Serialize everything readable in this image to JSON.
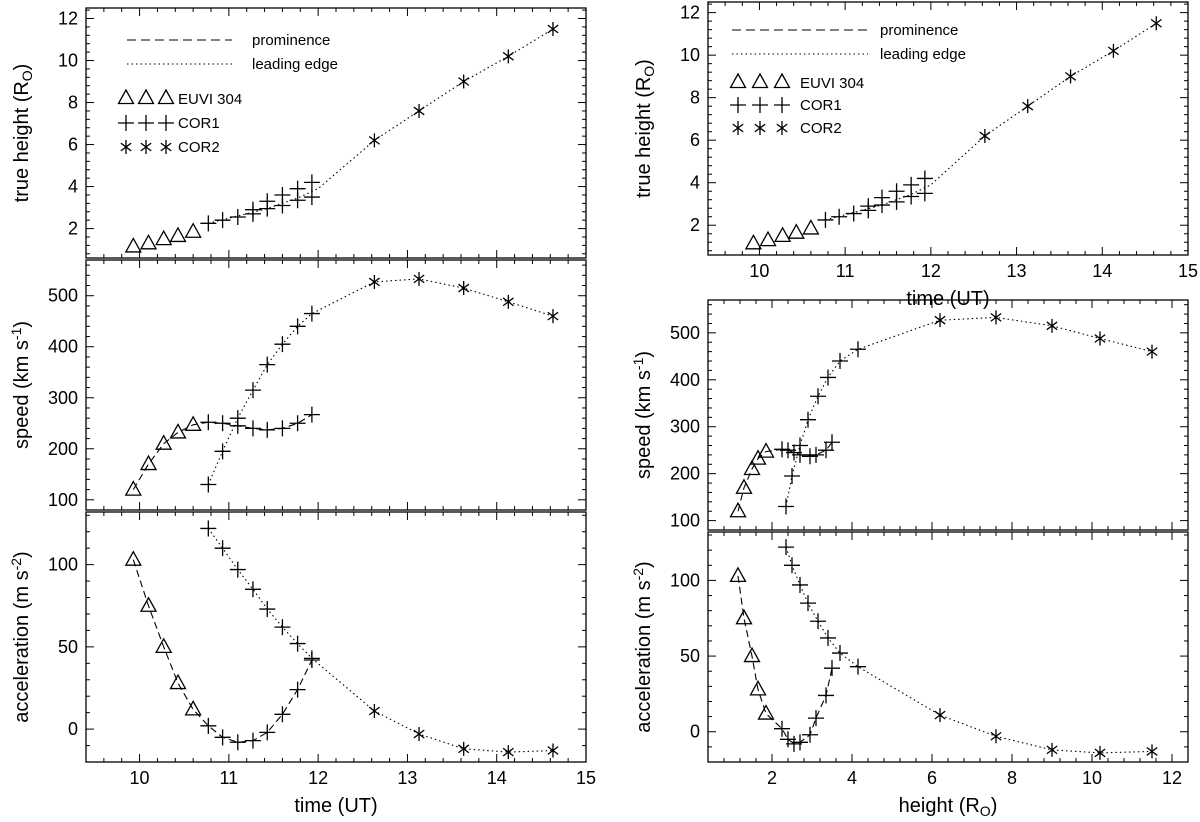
{
  "legend": {
    "prominence": "prominence",
    "leading_edge": "leading edge",
    "euvi": "EUVI 304",
    "cor1": "COR1",
    "cor2": "COR2"
  },
  "chart_data": [
    {
      "id": "height_vs_time",
      "type": "line",
      "xlabel": "",
      "ylabel": "true height (RO)",
      "xlim": [
        9.4,
        15
      ],
      "ylim": [
        0.6,
        12.5
      ],
      "xticks": [
        10,
        11,
        12,
        13,
        14,
        15
      ],
      "yticks": [
        2,
        4,
        6,
        8,
        10,
        12
      ],
      "show_xticklabels": false,
      "series": [
        {
          "name": "EUVI 304",
          "instrument": "euvi",
          "line": "none",
          "x": [
            9.93,
            10.1,
            10.27,
            10.43,
            10.6
          ],
          "y": [
            1.15,
            1.3,
            1.5,
            1.65,
            1.85
          ]
        },
        {
          "name": "COR1 prominence",
          "instrument": "cor1",
          "line": "none",
          "x": [
            10.77,
            10.93,
            11.1,
            11.27,
            11.43,
            11.6,
            11.77,
            11.93
          ],
          "y": [
            2.25,
            2.4,
            2.55,
            2.7,
            2.95,
            3.1,
            3.35,
            3.5
          ]
        },
        {
          "name": "COR1 leading edge",
          "instrument": "cor1",
          "line": "none",
          "x": [
            11.27,
            11.43,
            11.6,
            11.77,
            11.93
          ],
          "y": [
            2.9,
            3.3,
            3.6,
            3.9,
            4.2
          ]
        },
        {
          "name": "leading edge fit",
          "instrument": "none",
          "line": "dotted",
          "x": [
            10.77,
            11.1,
            11.43,
            11.77,
            12.0,
            12.63,
            13.13,
            13.63,
            14.13,
            14.63
          ],
          "y": [
            2.25,
            2.6,
            2.95,
            3.45,
            3.9,
            6.2,
            7.6,
            9.0,
            10.2,
            11.5
          ]
        },
        {
          "name": "COR2",
          "instrument": "cor2",
          "line": "none",
          "x": [
            12.63,
            13.13,
            13.63,
            14.13,
            14.63
          ],
          "y": [
            6.2,
            7.6,
            9.0,
            10.2,
            11.5
          ]
        }
      ]
    },
    {
      "id": "speed_vs_time",
      "type": "line",
      "xlabel": "",
      "ylabel": "speed (km s-1)",
      "xlim": [
        9.4,
        15
      ],
      "ylim": [
        80,
        570
      ],
      "xticks": [
        10,
        11,
        12,
        13,
        14,
        15
      ],
      "yticks": [
        100,
        200,
        300,
        400,
        500
      ],
      "show_xticklabels": false,
      "series": [
        {
          "name": "prominence fit",
          "instrument": "none",
          "line": "dashed",
          "x": [
            9.93,
            10.1,
            10.27,
            10.43,
            10.6,
            10.77,
            10.93,
            11.1,
            11.27,
            11.43,
            11.6,
            11.77,
            11.93
          ],
          "y": [
            120,
            170,
            210,
            232,
            247,
            252,
            250,
            245,
            240,
            237,
            240,
            250,
            267
          ]
        },
        {
          "name": "EUVI 304",
          "instrument": "euvi",
          "line": "none",
          "x": [
            9.93,
            10.1,
            10.27,
            10.43,
            10.6
          ],
          "y": [
            120,
            170,
            210,
            232,
            247
          ]
        },
        {
          "name": "COR1 prominence",
          "instrument": "cor1",
          "line": "none",
          "x": [
            10.77,
            10.93,
            11.1,
            11.27,
            11.43,
            11.6,
            11.77,
            11.93
          ],
          "y": [
            252,
            250,
            245,
            240,
            237,
            240,
            250,
            267
          ]
        },
        {
          "name": "leading edge fit",
          "instrument": "none",
          "line": "dotted",
          "x": [
            10.77,
            10.93,
            11.1,
            11.27,
            11.43,
            11.6,
            11.77,
            11.93,
            12.63,
            13.13,
            13.63,
            14.13,
            14.63
          ],
          "y": [
            130,
            195,
            260,
            315,
            365,
            405,
            440,
            465,
            527,
            533,
            515,
            488,
            460
          ]
        },
        {
          "name": "COR1 leading edge",
          "instrument": "cor1",
          "line": "none",
          "x": [
            10.77,
            10.93,
            11.1,
            11.27,
            11.43,
            11.6,
            11.77,
            11.93
          ],
          "y": [
            130,
            195,
            260,
            315,
            365,
            405,
            440,
            465
          ]
        },
        {
          "name": "COR2",
          "instrument": "cor2",
          "line": "none",
          "x": [
            12.63,
            13.13,
            13.63,
            14.13,
            14.63
          ],
          "y": [
            527,
            533,
            515,
            488,
            460
          ]
        }
      ]
    },
    {
      "id": "accel_vs_time",
      "type": "line",
      "xlabel": "time (UT)",
      "ylabel": "acceleration (m s-2)",
      "xlim": [
        9.4,
        15
      ],
      "ylim": [
        -20,
        132
      ],
      "xticks": [
        10,
        11,
        12,
        13,
        14,
        15
      ],
      "yticks": [
        0,
        50,
        100
      ],
      "show_xticklabels": true,
      "series": [
        {
          "name": "prominence fit",
          "instrument": "none",
          "line": "dashed",
          "x": [
            9.93,
            10.1,
            10.27,
            10.43,
            10.6,
            10.77,
            10.93,
            11.1,
            11.27,
            11.43,
            11.6,
            11.77,
            11.93
          ],
          "y": [
            103,
            75,
            50,
            28,
            12,
            2,
            -5,
            -8,
            -7,
            -2,
            9,
            24,
            42
          ]
        },
        {
          "name": "EUVI 304",
          "instrument": "euvi",
          "line": "none",
          "x": [
            9.93,
            10.1,
            10.27,
            10.43,
            10.6
          ],
          "y": [
            103,
            75,
            50,
            28,
            12
          ]
        },
        {
          "name": "COR1 prominence",
          "instrument": "cor1",
          "line": "none",
          "x": [
            10.77,
            10.93,
            11.1,
            11.27,
            11.43,
            11.6,
            11.77,
            11.93
          ],
          "y": [
            2,
            -5,
            -8,
            -7,
            -2,
            9,
            24,
            42
          ]
        },
        {
          "name": "leading edge fit",
          "instrument": "none",
          "line": "dotted",
          "x": [
            10.77,
            10.93,
            11.1,
            11.27,
            11.43,
            11.6,
            11.77,
            11.93,
            12.63,
            13.13,
            13.63,
            14.13,
            14.63
          ],
          "y": [
            122,
            110,
            97,
            85,
            73,
            62,
            52,
            43,
            11,
            -3,
            -12,
            -14,
            -13
          ]
        },
        {
          "name": "COR1 leading edge",
          "instrument": "cor1",
          "line": "none",
          "x": [
            10.77,
            10.93,
            11.1,
            11.27,
            11.43,
            11.6,
            11.77,
            11.93
          ],
          "y": [
            122,
            110,
            97,
            85,
            73,
            62,
            52,
            43
          ]
        },
        {
          "name": "COR2",
          "instrument": "cor2",
          "line": "none",
          "x": [
            12.63,
            13.13,
            13.63,
            14.13,
            14.63
          ],
          "y": [
            11,
            -3,
            -12,
            -14,
            -13
          ]
        }
      ]
    },
    {
      "id": "height_vs_time_right",
      "type": "line",
      "xlabel": "time (UT)",
      "ylabel": "true height (RO)",
      "xlim": [
        9.4,
        15
      ],
      "ylim": [
        0.6,
        12.5
      ],
      "xticks": [
        10,
        11,
        12,
        13,
        14,
        15
      ],
      "yticks": [
        2,
        4,
        6,
        8,
        10,
        12
      ],
      "show_xticklabels": true,
      "series": [
        {
          "name": "EUVI 304",
          "instrument": "euvi",
          "line": "none",
          "x": [
            9.93,
            10.1,
            10.27,
            10.43,
            10.6
          ],
          "y": [
            1.15,
            1.3,
            1.5,
            1.65,
            1.85
          ]
        },
        {
          "name": "COR1 prominence",
          "instrument": "cor1",
          "line": "none",
          "x": [
            10.77,
            10.93,
            11.1,
            11.27,
            11.43,
            11.6,
            11.77,
            11.93
          ],
          "y": [
            2.25,
            2.4,
            2.55,
            2.7,
            2.95,
            3.1,
            3.35,
            3.5
          ]
        },
        {
          "name": "COR1 leading edge",
          "instrument": "cor1",
          "line": "none",
          "x": [
            11.27,
            11.43,
            11.6,
            11.77,
            11.93
          ],
          "y": [
            2.9,
            3.3,
            3.6,
            3.9,
            4.2
          ]
        },
        {
          "name": "leading edge fit",
          "instrument": "none",
          "line": "dotted",
          "x": [
            10.77,
            11.1,
            11.43,
            11.77,
            12.0,
            12.63,
            13.13,
            13.63,
            14.13,
            14.63
          ],
          "y": [
            2.25,
            2.6,
            2.95,
            3.45,
            3.9,
            6.2,
            7.6,
            9.0,
            10.2,
            11.5
          ]
        },
        {
          "name": "COR2",
          "instrument": "cor2",
          "line": "none",
          "x": [
            12.63,
            13.13,
            13.63,
            14.13,
            14.63
          ],
          "y": [
            6.2,
            7.6,
            9.0,
            10.2,
            11.5
          ]
        }
      ]
    },
    {
      "id": "speed_vs_height",
      "type": "line",
      "xlabel": "",
      "ylabel": "speed (km s-1)",
      "xlim": [
        0.4,
        12.4
      ],
      "ylim": [
        80,
        570
      ],
      "xticks": [
        2,
        4,
        6,
        8,
        10,
        12
      ],
      "yticks": [
        100,
        200,
        300,
        400,
        500
      ],
      "show_xticklabels": false,
      "series": [
        {
          "name": "prominence fit",
          "instrument": "none",
          "line": "dashed",
          "x": [
            1.15,
            1.3,
            1.5,
            1.65,
            1.85,
            2.25,
            2.4,
            2.55,
            2.7,
            2.95,
            3.1,
            3.35,
            3.5
          ],
          "y": [
            120,
            170,
            210,
            232,
            247,
            252,
            250,
            245,
            240,
            237,
            240,
            250,
            267
          ]
        },
        {
          "name": "EUVI 304",
          "instrument": "euvi",
          "line": "none",
          "x": [
            1.15,
            1.3,
            1.5,
            1.65,
            1.85
          ],
          "y": [
            120,
            170,
            210,
            232,
            247
          ]
        },
        {
          "name": "COR1 prominence",
          "instrument": "cor1",
          "line": "none",
          "x": [
            2.25,
            2.4,
            2.55,
            2.7,
            2.95,
            3.1,
            3.35,
            3.5
          ],
          "y": [
            252,
            250,
            245,
            240,
            237,
            240,
            250,
            267
          ]
        },
        {
          "name": "leading edge fit",
          "instrument": "none",
          "line": "dotted",
          "x": [
            2.35,
            2.5,
            2.7,
            2.9,
            3.15,
            3.4,
            3.7,
            4.15,
            6.2,
            7.6,
            9.0,
            10.2,
            11.5
          ],
          "y": [
            130,
            195,
            260,
            315,
            365,
            405,
            440,
            465,
            527,
            533,
            515,
            488,
            460
          ]
        },
        {
          "name": "COR1 leading edge",
          "instrument": "cor1",
          "line": "none",
          "x": [
            2.35,
            2.5,
            2.7,
            2.9,
            3.15,
            3.4,
            3.7,
            4.15
          ],
          "y": [
            130,
            195,
            260,
            315,
            365,
            405,
            440,
            465
          ]
        },
        {
          "name": "COR2",
          "instrument": "cor2",
          "line": "none",
          "x": [
            6.2,
            7.6,
            9.0,
            10.2,
            11.5
          ],
          "y": [
            527,
            533,
            515,
            488,
            460
          ]
        }
      ]
    },
    {
      "id": "accel_vs_height",
      "type": "line",
      "xlabel": "height (RO)",
      "ylabel": "acceleration (m s-2)",
      "xlim": [
        0.4,
        12.4
      ],
      "ylim": [
        -20,
        132
      ],
      "xticks": [
        2,
        4,
        6,
        8,
        10,
        12
      ],
      "yticks": [
        0,
        50,
        100
      ],
      "show_xticklabels": true,
      "series": [
        {
          "name": "prominence fit",
          "instrument": "none",
          "line": "dashed",
          "x": [
            1.15,
            1.3,
            1.5,
            1.65,
            1.85,
            2.25,
            2.4,
            2.55,
            2.7,
            2.95,
            3.1,
            3.35,
            3.5
          ],
          "y": [
            103,
            75,
            50,
            28,
            12,
            2,
            -5,
            -8,
            -7,
            -2,
            9,
            24,
            42
          ]
        },
        {
          "name": "EUVI 304",
          "instrument": "euvi",
          "line": "none",
          "x": [
            1.15,
            1.3,
            1.5,
            1.65,
            1.85
          ],
          "y": [
            103,
            75,
            50,
            28,
            12
          ]
        },
        {
          "name": "COR1 prominence",
          "instrument": "cor1",
          "line": "none",
          "x": [
            2.25,
            2.4,
            2.55,
            2.7,
            2.95,
            3.1,
            3.35,
            3.5
          ],
          "y": [
            2,
            -5,
            -8,
            -7,
            -2,
            9,
            24,
            42
          ]
        },
        {
          "name": "leading edge fit",
          "instrument": "none",
          "line": "dotted",
          "x": [
            2.35,
            2.5,
            2.7,
            2.9,
            3.15,
            3.4,
            3.7,
            4.15,
            6.2,
            7.6,
            9.0,
            10.2,
            11.5
          ],
          "y": [
            122,
            110,
            97,
            85,
            73,
            62,
            52,
            43,
            11,
            -3,
            -12,
            -14,
            -13
          ]
        },
        {
          "name": "COR1 leading edge",
          "instrument": "cor1",
          "line": "none",
          "x": [
            2.35,
            2.5,
            2.7,
            2.9,
            3.15,
            3.4,
            3.7,
            4.15
          ],
          "y": [
            122,
            110,
            97,
            85,
            73,
            62,
            52,
            43
          ]
        },
        {
          "name": "COR2",
          "instrument": "cor2",
          "line": "none",
          "x": [
            6.2,
            7.6,
            9.0,
            10.2,
            11.5
          ],
          "y": [
            11,
            -3,
            -12,
            -14,
            -13
          ]
        }
      ]
    }
  ]
}
